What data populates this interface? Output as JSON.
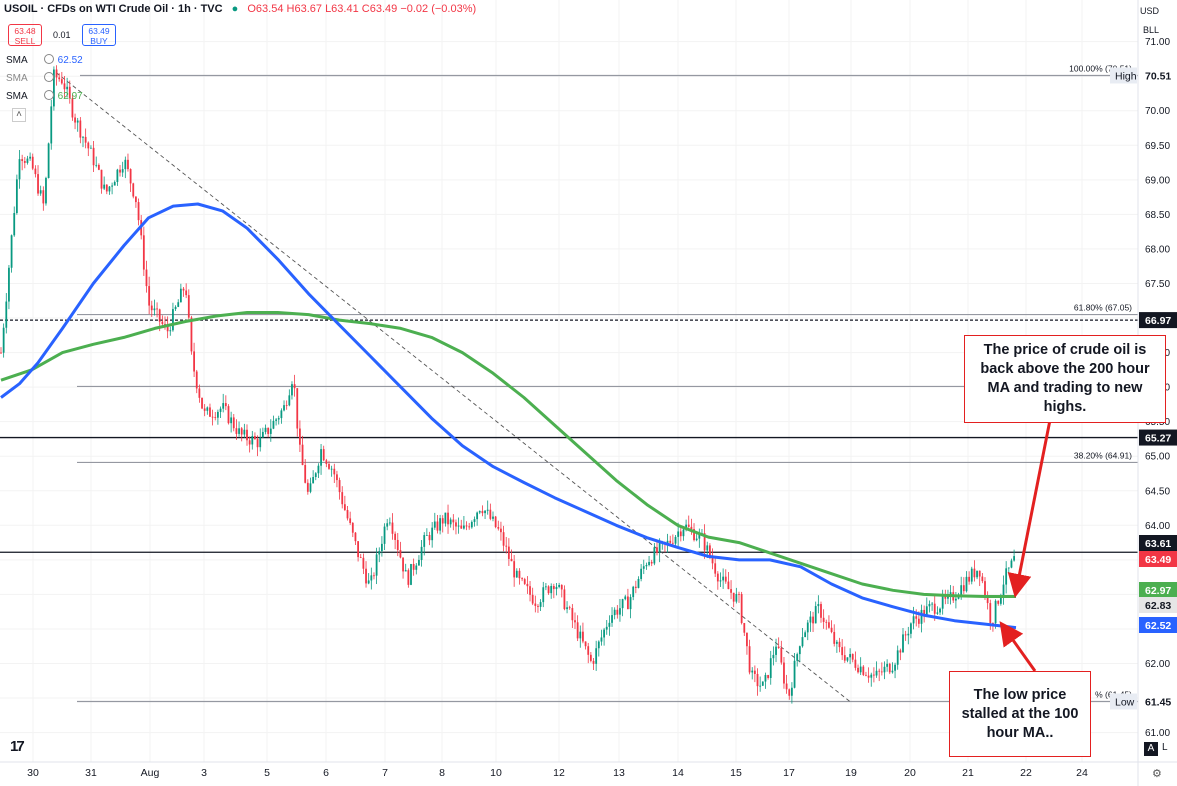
{
  "header": {
    "symbol": "USOIL · CFDs on WTI Crude Oil · 1h · TVC",
    "open": "O63.54",
    "high": "H63.67",
    "low": "L63.41",
    "close": "C63.49",
    "change": "−0.02 (−0.03%)",
    "sell_price": "63.48",
    "sell_label": "SELL",
    "spread": "0.01",
    "buy_price": "63.49",
    "buy_label": "BUY"
  },
  "indicators": [
    {
      "name": "SMA",
      "value": "62.52",
      "color": "#2962ff"
    },
    {
      "name": "SMA",
      "value": "",
      "color": "#888888"
    },
    {
      "name": "SMA",
      "value": "62.97",
      "color": "#4caf50"
    }
  ],
  "top_right": {
    "currency": "USD",
    "unit": "BLL"
  },
  "auto_scale": {
    "a": "A",
    "log": "L"
  },
  "annotations": {
    "upper": "The price of crude oil is back above the 200 hour MA and trading to new highs.",
    "lower": "The low price stalled at the 100 hour MA.."
  },
  "colors": {
    "up_candle": "#089981",
    "down_candle": "#f23645",
    "ma100": "#2962ff",
    "ma200": "#4caf50",
    "annotation_border": "#e32020"
  },
  "chart_data": {
    "type": "candlestick",
    "timeframe": "1h",
    "x_ticks": [
      "30",
      "31",
      "Aug",
      "3",
      "5",
      "6",
      "7",
      "8",
      "10",
      "12",
      "13",
      "14",
      "15",
      "17",
      "19",
      "20",
      "21",
      "22",
      "24"
    ],
    "y_ticks": [
      "61.00",
      "61.50",
      "62.00",
      "62.50",
      "63.00",
      "63.50",
      "64.00",
      "64.50",
      "65.00",
      "65.50",
      "66.00",
      "66.50",
      "67.00",
      "67.50",
      "68.00",
      "68.50",
      "69.00",
      "69.50",
      "70.00",
      "70.50",
      "71.00"
    ],
    "ylim": [
      60.7,
      71.0
    ],
    "fib_levels": [
      {
        "label": "100.00% (70.51)",
        "value": 70.51
      },
      {
        "label": "61.80% (67.05)",
        "value": 67.05
      },
      {
        "label": "",
        "value": 66.01
      },
      {
        "label": "38.20% (64.91)",
        "value": 64.91
      },
      {
        "label": "% (61.45)",
        "value": 61.45
      }
    ],
    "horizontal_lines": [
      66.97,
      65.27,
      63.61
    ],
    "price_labels": [
      {
        "text": "70.51",
        "value": 70.51,
        "tag": "High"
      },
      {
        "text": "66.97",
        "value": 66.97
      },
      {
        "text": "65.27",
        "value": 65.27
      },
      {
        "text": "63.61",
        "value": 63.61
      },
      {
        "text": "63.49",
        "value": 63.49
      },
      {
        "text": "62.97",
        "value": 62.97
      },
      {
        "text": "62.83",
        "value": 62.83
      },
      {
        "text": "62.52",
        "value": 62.52
      },
      {
        "text": "61.45",
        "value": 61.45,
        "tag": "Low"
      }
    ],
    "trend_line": {
      "from": [
        0.9,
        70.55
      ],
      "to": [
        13.8,
        61.45
      ]
    },
    "ma100": [
      [
        0,
        65.85
      ],
      [
        0.3,
        66.05
      ],
      [
        0.6,
        66.35
      ],
      [
        1.0,
        66.85
      ],
      [
        1.5,
        67.5
      ],
      [
        2.0,
        68.05
      ],
      [
        2.4,
        68.45
      ],
      [
        2.8,
        68.62
      ],
      [
        3.2,
        68.65
      ],
      [
        3.6,
        68.55
      ],
      [
        4.0,
        68.3
      ],
      [
        4.5,
        67.85
      ],
      [
        5.0,
        67.35
      ],
      [
        5.5,
        66.9
      ],
      [
        6.0,
        66.45
      ],
      [
        6.5,
        66.0
      ],
      [
        7.0,
        65.55
      ],
      [
        7.5,
        65.15
      ],
      [
        8.0,
        64.85
      ],
      [
        8.5,
        64.62
      ],
      [
        9.0,
        64.4
      ],
      [
        9.5,
        64.2
      ],
      [
        10.0,
        64.0
      ],
      [
        10.5,
        63.82
      ],
      [
        11.0,
        63.68
      ],
      [
        11.5,
        63.55
      ],
      [
        12.0,
        63.5
      ],
      [
        12.5,
        63.5
      ],
      [
        13.0,
        63.4
      ],
      [
        13.5,
        63.15
      ],
      [
        14.0,
        62.95
      ],
      [
        14.5,
        62.82
      ],
      [
        15.0,
        62.7
      ],
      [
        15.5,
        62.62
      ],
      [
        16.0,
        62.57
      ],
      [
        16.5,
        62.52
      ]
    ],
    "ma200": [
      [
        0,
        66.1
      ],
      [
        0.5,
        66.25
      ],
      [
        1.0,
        66.5
      ],
      [
        1.5,
        66.62
      ],
      [
        2.0,
        66.72
      ],
      [
        2.5,
        66.85
      ],
      [
        3.0,
        66.95
      ],
      [
        3.5,
        67.03
      ],
      [
        4.0,
        67.08
      ],
      [
        4.5,
        67.08
      ],
      [
        5.0,
        67.05
      ],
      [
        5.5,
        66.97
      ],
      [
        6.0,
        66.92
      ],
      [
        6.5,
        66.85
      ],
      [
        7.0,
        66.72
      ],
      [
        7.5,
        66.5
      ],
      [
        8.0,
        66.2
      ],
      [
        8.5,
        65.85
      ],
      [
        9.0,
        65.45
      ],
      [
        9.5,
        65.05
      ],
      [
        10.0,
        64.65
      ],
      [
        10.5,
        64.3
      ],
      [
        11.0,
        64.0
      ],
      [
        11.5,
        63.83
      ],
      [
        12.0,
        63.75
      ],
      [
        12.5,
        63.6
      ],
      [
        13.0,
        63.45
      ],
      [
        13.5,
        63.3
      ],
      [
        14.0,
        63.15
      ],
      [
        14.5,
        63.06
      ],
      [
        15.0,
        63.0
      ],
      [
        15.5,
        62.98
      ],
      [
        16.0,
        62.97
      ],
      [
        16.5,
        62.97
      ]
    ],
    "price_path": [
      [
        0,
        66.5
      ],
      [
        0.3,
        69.4
      ],
      [
        0.5,
        69.2
      ],
      [
        0.7,
        68.6
      ],
      [
        0.85,
        70.5
      ],
      [
        1.0,
        70.45
      ],
      [
        1.2,
        69.9
      ],
      [
        1.5,
        69.3
      ],
      [
        1.7,
        68.8
      ],
      [
        2.0,
        69.3
      ],
      [
        2.2,
        68.7
      ],
      [
        2.4,
        67.2
      ],
      [
        2.7,
        66.8
      ],
      [
        3.0,
        67.5
      ],
      [
        3.1,
        66.4
      ],
      [
        3.3,
        65.6
      ],
      [
        3.6,
        65.7
      ],
      [
        3.9,
        65.3
      ],
      [
        4.2,
        65.2
      ],
      [
        4.6,
        65.7
      ],
      [
        4.75,
        66.2
      ],
      [
        4.85,
        65.1
      ],
      [
        5.0,
        64.4
      ],
      [
        5.2,
        65.1
      ],
      [
        5.4,
        64.8
      ],
      [
        5.6,
        64.2
      ],
      [
        5.8,
        63.6
      ],
      [
        6.0,
        63.1
      ],
      [
        6.3,
        64.2
      ],
      [
        6.6,
        63.2
      ],
      [
        6.9,
        63.8
      ],
      [
        7.2,
        64.1
      ],
      [
        7.5,
        63.9
      ],
      [
        7.8,
        64.3
      ],
      [
        8.1,
        63.9
      ],
      [
        8.4,
        63.2
      ],
      [
        8.7,
        62.9
      ],
      [
        9.0,
        63.2
      ],
      [
        9.3,
        62.6
      ],
      [
        9.6,
        62.0
      ],
      [
        9.9,
        62.7
      ],
      [
        10.2,
        62.9
      ],
      [
        10.5,
        63.5
      ],
      [
        10.8,
        63.7
      ],
      [
        11.1,
        64.0
      ],
      [
        11.4,
        63.8
      ],
      [
        11.7,
        63.2
      ],
      [
        12.0,
        62.9
      ],
      [
        12.2,
        61.8
      ],
      [
        12.4,
        61.65
      ],
      [
        12.6,
        62.3
      ],
      [
        12.8,
        61.5
      ],
      [
        13.0,
        62.4
      ],
      [
        13.3,
        62.8
      ],
      [
        13.6,
        62.2
      ],
      [
        13.9,
        62.0
      ],
      [
        14.2,
        61.8
      ],
      [
        14.5,
        62.0
      ],
      [
        14.8,
        62.6
      ],
      [
        15.1,
        62.8
      ],
      [
        15.4,
        62.9
      ],
      [
        15.7,
        63.2
      ],
      [
        15.9,
        63.4
      ],
      [
        16.1,
        62.6
      ],
      [
        16.3,
        63.2
      ],
      [
        16.5,
        63.55
      ]
    ]
  }
}
